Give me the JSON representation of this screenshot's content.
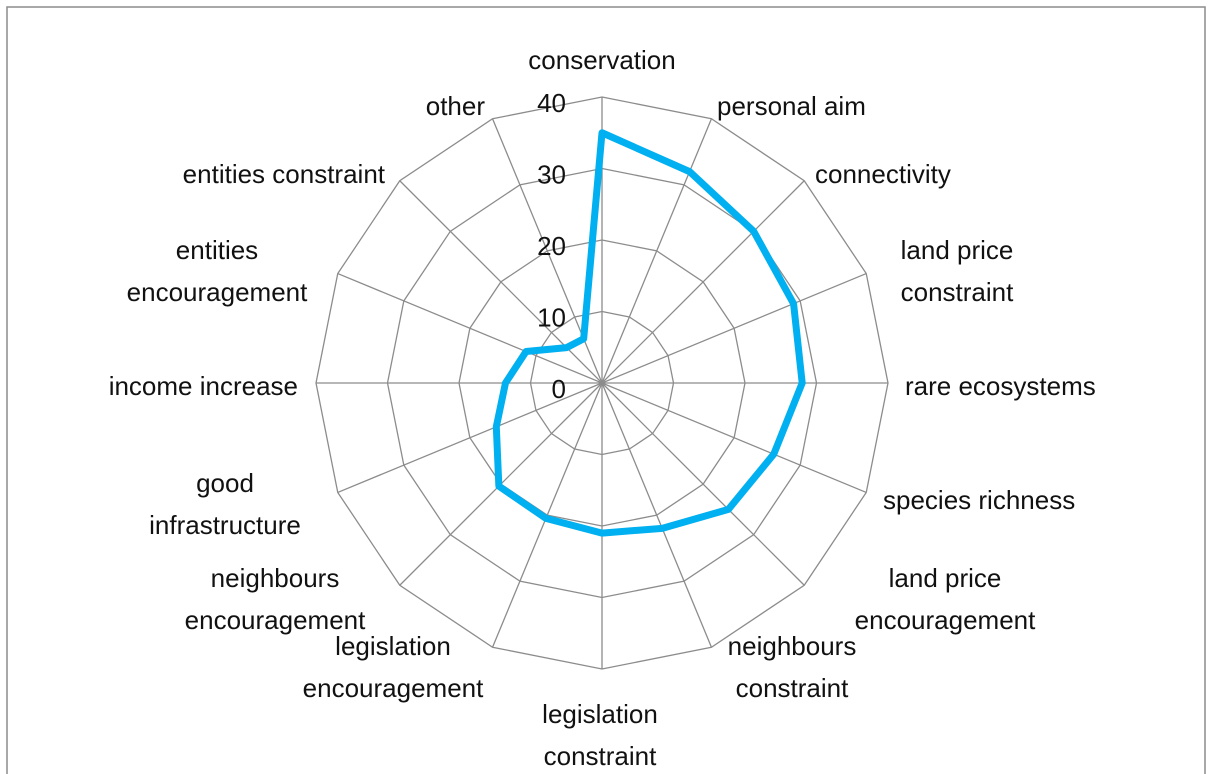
{
  "chart_data": {
    "type": "radar",
    "categories": [
      "conservation",
      "personal aim",
      "connectivity",
      "land price constraint",
      "rare ecosystems",
      "species richness",
      "land price encouragement",
      "neighbours constraint",
      "legislation constraint",
      "legislation encouragement",
      "neighbours encouragement",
      "good infrastructure",
      "income increase",
      "entities encouragement",
      "entities constraint",
      "other"
    ],
    "series": [
      {
        "color": "#00b0f0",
        "values": [
          35,
          32,
          30,
          29,
          28,
          26,
          25,
          22,
          21,
          20.5,
          20.4,
          16,
          13.5,
          11.5,
          7,
          6.7
        ]
      }
    ],
    "ylim": [
      0,
      40
    ],
    "yticks": [
      0,
      10,
      20,
      30,
      40
    ],
    "grid": true
  }
}
